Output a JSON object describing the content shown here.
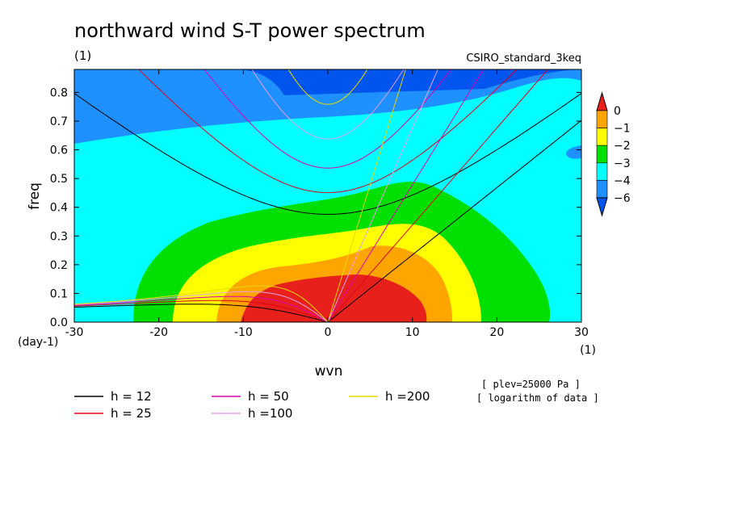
{
  "chart_data": {
    "type": "heatmap",
    "title": "northward wind S-T power spectrum",
    "subtitle_left": "(1)",
    "subtitle_right": "CSIRO_standard_3keq",
    "xlabel": "wvn",
    "ylabel": "freq",
    "x_unit": "(1)",
    "y_unit": "(day-1)",
    "xlim": [
      -30,
      30
    ],
    "ylim": [
      0,
      0.88
    ],
    "x_ticks": [
      -30,
      -20,
      -10,
      0,
      10,
      20,
      30
    ],
    "x_tick_labels": [
      "-30",
      "-20",
      "-10",
      "0",
      "10",
      "20",
      "30"
    ],
    "y_ticks": [
      0,
      0.1,
      0.2,
      0.3,
      0.4,
      0.5,
      0.6,
      0.7,
      0.8
    ],
    "y_tick_labels": [
      "0.0",
      "0.1",
      "0.2",
      "0.3",
      "0.4",
      "0.5",
      "0.6",
      "0.7",
      "0.8"
    ],
    "colorbar": {
      "labels": [
        "0",
        "−1",
        "−2",
        "−3",
        "−4",
        "−6"
      ],
      "colors": [
        "#e8201c",
        "#ffa500",
        "#ffff00",
        "#00e000",
        "#00ffff",
        "#1e90ff",
        "#0055ee"
      ]
    },
    "contour_levels": [
      {
        "level": "< -6",
        "color": "#0055ee"
      },
      {
        "level": "-6 to -4",
        "color": "#1e90ff"
      },
      {
        "level": "-4 to -3",
        "color": "#00ffff"
      },
      {
        "level": "-3 to -2",
        "color": "#00e000"
      },
      {
        "level": "-2 to -1",
        "color": "#ffff00"
      },
      {
        "level": "-1 to 0",
        "color": "#ffa500"
      },
      {
        "level": "> 0",
        "color": "#e8201c"
      }
    ],
    "dispersion_curves": [
      {
        "name": "h = 12",
        "h": 12,
        "color": "#000000"
      },
      {
        "name": "h = 25",
        "h": 25,
        "color": "#e0001a"
      },
      {
        "name": "h = 50",
        "h": 50,
        "color": "#e000b0"
      },
      {
        "name": "h =100",
        "h": 100,
        "color": "#e8a0e8"
      },
      {
        "name": "h =200",
        "h": 200,
        "color": "#e8d800"
      }
    ],
    "notes": [
      "[ plev=25000 Pa ]",
      "[ logarithm of data ]"
    ]
  }
}
